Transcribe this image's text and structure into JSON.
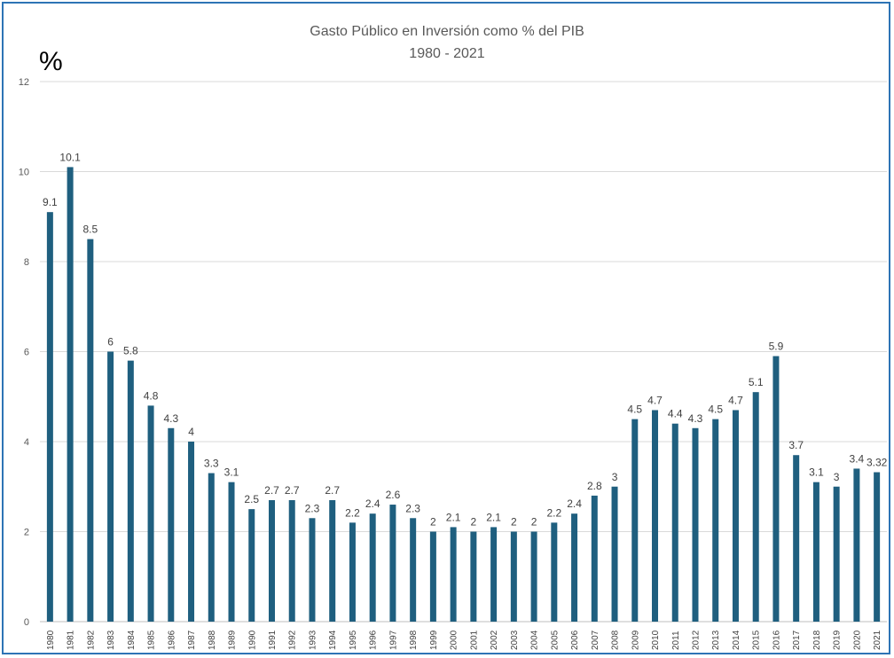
{
  "chart_data": {
    "type": "bar",
    "title": "Gasto Público en Inversión como % del PIB",
    "subtitle": "1980 - 2021",
    "ylabel": "%",
    "xlabel": "",
    "ylim": [
      0,
      12
    ],
    "yticks": [
      0,
      2,
      4,
      6,
      8,
      10,
      12
    ],
    "grid": true,
    "legend": "none",
    "color": "#1f5f7f",
    "categories": [
      "1980",
      "1981",
      "1982",
      "1983",
      "1984",
      "1985",
      "1986",
      "1987",
      "1988",
      "1989",
      "1990",
      "1991",
      "1992",
      "1993",
      "1994",
      "1995",
      "1996",
      "1997",
      "1998",
      "1999",
      "2000",
      "2001",
      "2002",
      "2003",
      "2004",
      "2005",
      "2006",
      "2007",
      "2008",
      "2009",
      "2010",
      "2011",
      "2012",
      "2013",
      "2014",
      "2015",
      "2016",
      "2017",
      "2018",
      "2019",
      "2020",
      "2021"
    ],
    "values": [
      9.1,
      10.1,
      8.5,
      6,
      5.8,
      4.8,
      4.3,
      4,
      3.3,
      3.1,
      2.5,
      2.7,
      2.7,
      2.3,
      2.7,
      2.2,
      2.4,
      2.6,
      2.3,
      2,
      2.1,
      2,
      2.1,
      2,
      2,
      2.2,
      2.4,
      2.8,
      3,
      4.5,
      4.7,
      4.4,
      4.3,
      4.5,
      4.7,
      5.1,
      5.9,
      3.7,
      3.1,
      3,
      3.4,
      3.32
    ],
    "data_labels": [
      "9.1",
      "10.1",
      "8.5",
      "6",
      "5.8",
      "4.8",
      "4.3",
      "4",
      "3.3",
      "3.1",
      "2.5",
      "2.7",
      "2.7",
      "2.3",
      "2.7",
      "2.2",
      "2.4",
      "2.6",
      "2.3",
      "2",
      "2.1",
      "2",
      "2.1",
      "2",
      "2",
      "2.2",
      "2.4",
      "2.8",
      "3",
      "4.5",
      "4.7",
      "4.4",
      "4.3",
      "4.5",
      "4.7",
      "5.1",
      "5.9",
      "3.7",
      "3.1",
      "3",
      "3.4",
      "3.32"
    ]
  }
}
